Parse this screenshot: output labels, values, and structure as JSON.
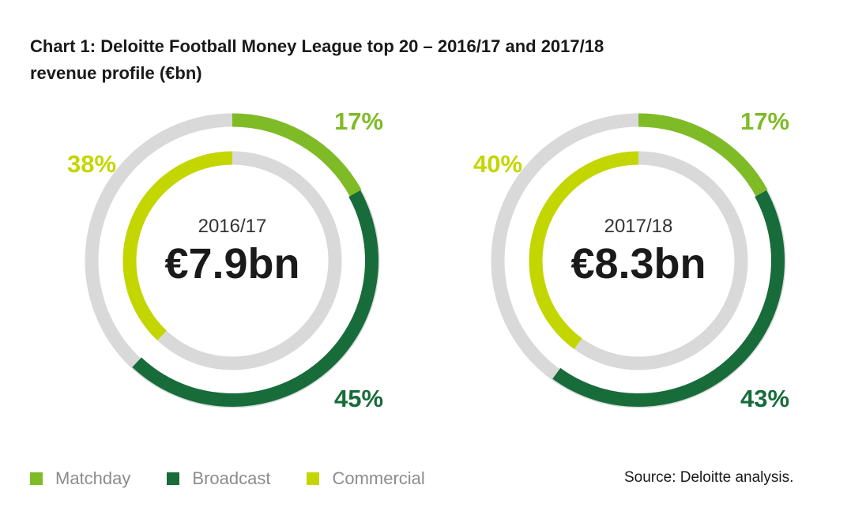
{
  "title_lines": [
    "Chart 1: Deloitte Football Money League top 20 – 2016/17 and 2017/18",
    "revenue profile (€bn)"
  ],
  "colors": {
    "matchday": "#7fbb27",
    "broadcast": "#176c3a",
    "commercial": "#c4d600",
    "track": "#d9d9d9"
  },
  "legend": [
    {
      "label": "Matchday",
      "key": "matchday"
    },
    {
      "label": "Broadcast",
      "key": "broadcast"
    },
    {
      "label": "Commercial",
      "key": "commercial"
    }
  ],
  "source": "Source: Deloitte analysis.",
  "chart_data": [
    {
      "type": "pie",
      "season": "2016/17",
      "total": "€7.9bn",
      "categories": [
        "Matchday",
        "Broadcast",
        "Commercial"
      ],
      "values": [
        17,
        45,
        38
      ],
      "labels": [
        "17%",
        "45%",
        "38%"
      ]
    },
    {
      "type": "pie",
      "season": "2017/18",
      "total": "€8.3bn",
      "categories": [
        "Matchday",
        "Broadcast",
        "Commercial"
      ],
      "values": [
        17,
        43,
        40
      ],
      "labels": [
        "17%",
        "43%",
        "40%"
      ]
    }
  ]
}
